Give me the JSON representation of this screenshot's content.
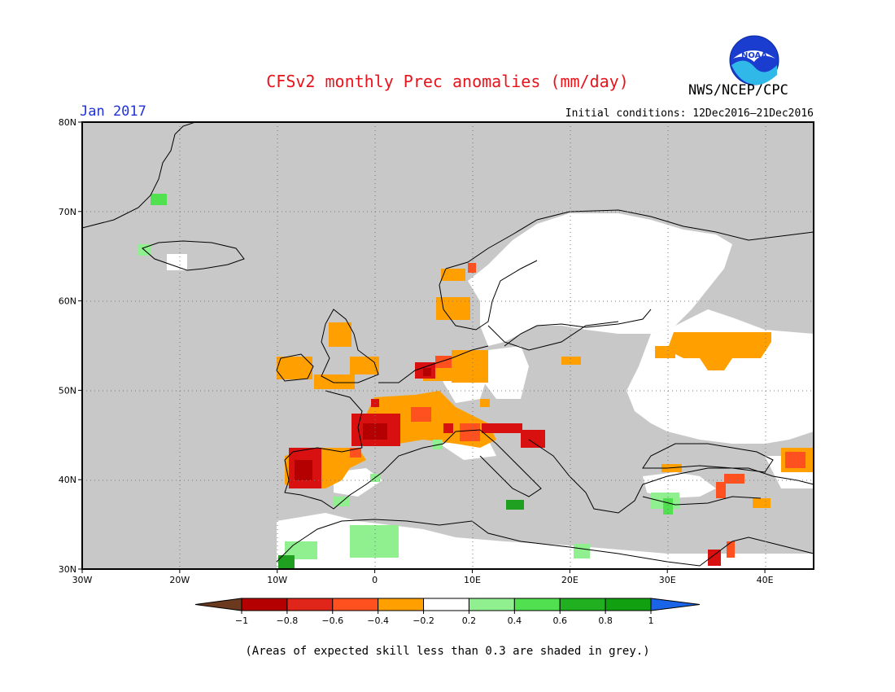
{
  "header": {
    "title": "CFSv2 monthly Prec anomalies (mm/day)",
    "agency": "NWS/NCEP/CPC",
    "month": "Jan 2017",
    "initial_conditions": "Initial conditions: 12Dec2016–21Dec2016",
    "logo_text": "NOAA"
  },
  "map": {
    "lon_range": [
      -30,
      45
    ],
    "lat_range": [
      30,
      80
    ],
    "lat_ticks": [
      {
        "value": 80,
        "label": "80N"
      },
      {
        "value": 70,
        "label": "70N"
      },
      {
        "value": 60,
        "label": "60N"
      },
      {
        "value": 50,
        "label": "50N"
      },
      {
        "value": 40,
        "label": "40N"
      },
      {
        "value": 30,
        "label": "30N"
      }
    ],
    "lon_ticks": [
      {
        "value": -30,
        "label": "30W"
      },
      {
        "value": -20,
        "label": "20W"
      },
      {
        "value": -10,
        "label": "10W"
      },
      {
        "value": 0,
        "label": "0"
      },
      {
        "value": 10,
        "label": "10E"
      },
      {
        "value": 20,
        "label": "20E"
      },
      {
        "value": 30,
        "label": "30E"
      },
      {
        "value": 40,
        "label": "40E"
      }
    ],
    "colors": {
      "ocean": "#c8c8c8",
      "land_skill": "#ffffff",
      "low_skill_land": "#c8c8c8"
    }
  },
  "colorbar": {
    "labels": [
      "−1",
      "−0.8",
      "−0.6",
      "−0.4",
      "−0.2",
      "0.2",
      "0.4",
      "0.6",
      "0.8",
      "1"
    ],
    "colors": [
      "#6b3a1e",
      "#b40000",
      "#e0261a",
      "#ff5020",
      "#ffa000",
      "#ffffff",
      "#90f090",
      "#50e050",
      "#20b020",
      "#10a010",
      "#1a64e8"
    ]
  },
  "footnote": "(Areas of expected skill less than 0.3 are shaded in grey.)"
}
